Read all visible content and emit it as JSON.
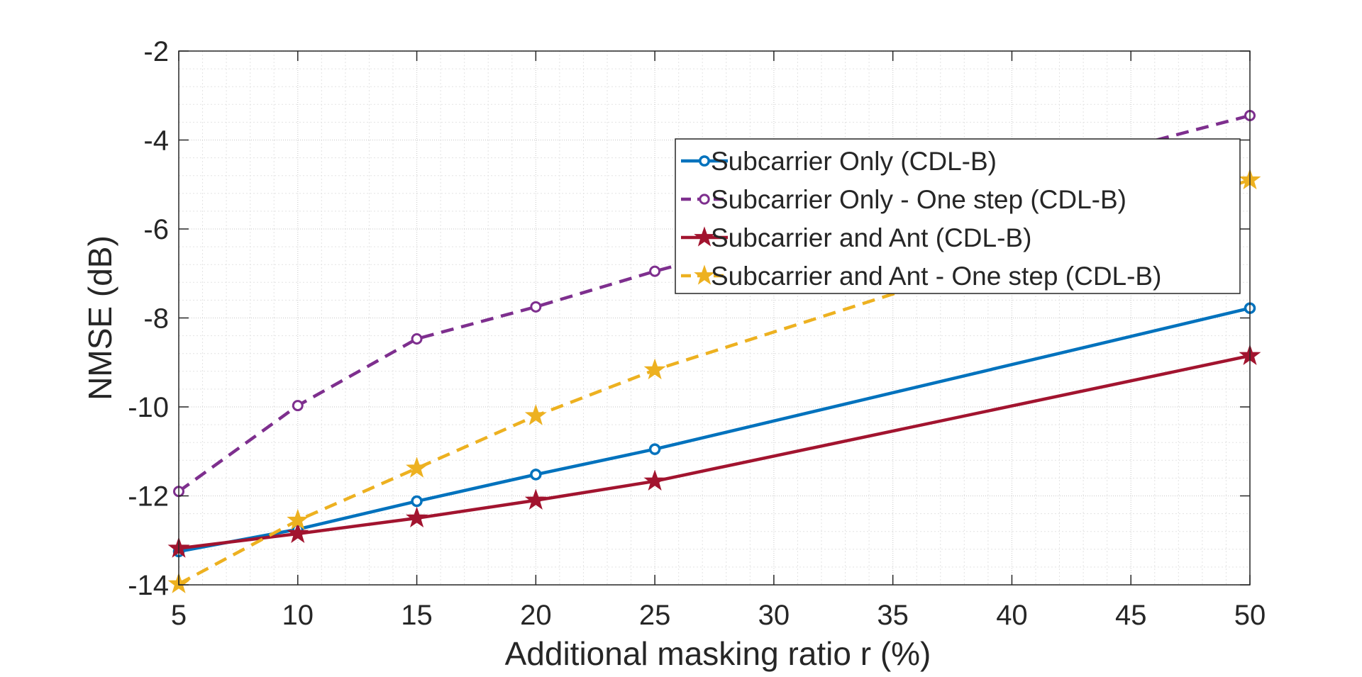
{
  "chart_data": {
    "type": "line",
    "xlabel": "Additional masking ratio r (%)",
    "ylabel": "NMSE (dB)",
    "xlim": [
      5,
      50
    ],
    "ylim": [
      -14,
      -2
    ],
    "grid": true,
    "minor_grid": true,
    "legend_position": "top-right",
    "xticks": [
      5,
      10,
      15,
      20,
      25,
      30,
      35,
      40,
      45,
      50
    ],
    "yticks": [
      -14,
      -12,
      -10,
      -8,
      -6,
      -4,
      -2
    ],
    "x": [
      5,
      10,
      15,
      20,
      25,
      50
    ],
    "series": [
      {
        "name": "Subcarrier Only (CDL-B)",
        "color": "#0072BD",
        "line_style": "solid",
        "marker": "circle-filled",
        "values": [
          -13.25,
          -12.75,
          -12.12,
          -11.52,
          -10.95,
          -7.78
        ]
      },
      {
        "name": "Subcarrier Only - One step (CDL-B)",
        "color": "#7E2F8E",
        "line_style": "dashed",
        "marker": "circle-open",
        "values": [
          -11.9,
          -9.97,
          -8.47,
          -7.75,
          -6.95,
          -3.45
        ]
      },
      {
        "name": "Subcarrier and Ant (CDL-B)",
        "color": "#A2142F",
        "line_style": "solid",
        "marker": "star",
        "values": [
          -13.18,
          -12.85,
          -12.5,
          -12.1,
          -11.67,
          -8.85
        ]
      },
      {
        "name": "Subcarrier and Ant - One step (CDL-B)",
        "color": "#EDB120",
        "line_style": "dashed",
        "marker": "star",
        "values": [
          -13.98,
          -12.55,
          -11.38,
          -10.2,
          -9.17,
          -4.9
        ]
      }
    ]
  }
}
